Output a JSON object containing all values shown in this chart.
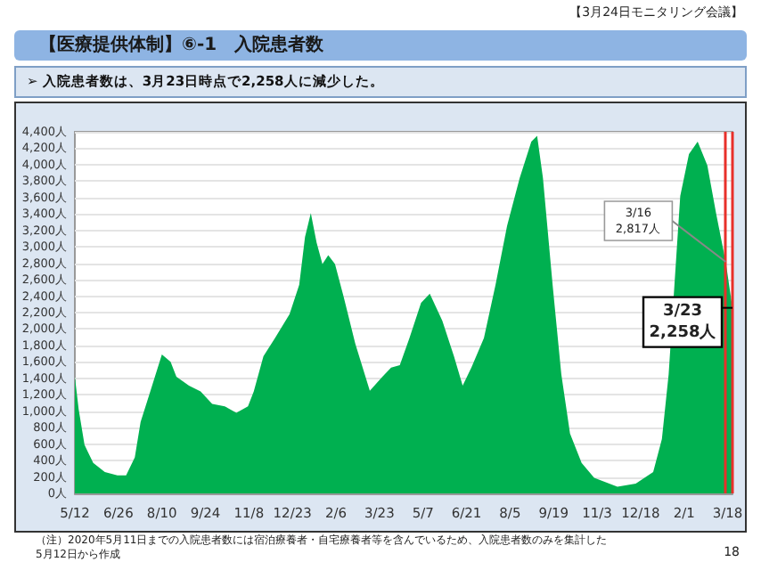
{
  "chart_data": {
    "type": "area",
    "title": "【医療提供体制】⑥-1　入院患者数",
    "subtitle": "➢  入院患者数は、3月23日時点で2,258人に減少した。",
    "annotations": [
      "【3月24日モニタリング会議】",
      "（注）2020年5月11日までの入院患者数には宿泊療養者・自宅療養者等を含んでいるため、入院患者数のみを集計した\n5月12日から作成",
      "18",
      {
        "text": "3/16\n2,817人",
        "x": "2022-03-16",
        "y": 2817
      },
      {
        "text": "3/23\n2,258人",
        "x": "2022-03-23",
        "y": 2258
      }
    ],
    "x": [
      "2020-05-12",
      "2020-05-16",
      "2020-05-22",
      "2020-05-31",
      "2020-06-12",
      "2020-06-25",
      "2020-07-04",
      "2020-07-13",
      "2020-07-19",
      "2020-07-29",
      "2020-08-10",
      "2020-08-19",
      "2020-08-25",
      "2020-09-07",
      "2020-09-19",
      "2020-10-01",
      "2020-10-14",
      "2020-10-26",
      "2020-11-07",
      "2020-11-13",
      "2020-11-23",
      "2020-12-05",
      "2020-12-20",
      "2020-12-30",
      "2021-01-05",
      "2021-01-11",
      "2021-01-17",
      "2021-01-23",
      "2021-01-29",
      "2021-02-05",
      "2021-02-14",
      "2021-02-26",
      "2021-03-13",
      "2021-03-26",
      "2021-04-04",
      "2021-04-13",
      "2021-04-23",
      "2021-05-05",
      "2021-05-14",
      "2021-05-27",
      "2021-06-08",
      "2021-06-17",
      "2021-06-26",
      "2021-07-09",
      "2021-07-21",
      "2021-08-02",
      "2021-08-15",
      "2021-08-27",
      "2021-09-02",
      "2021-09-08",
      "2021-09-18",
      "2021-09-27",
      "2021-10-06",
      "2021-10-18",
      "2021-10-31",
      "2021-11-24",
      "2021-12-13",
      "2021-12-31",
      "2022-01-09",
      "2022-01-16",
      "2022-01-22",
      "2022-01-28",
      "2022-02-06",
      "2022-02-15",
      "2022-02-25",
      "2022-03-06",
      "2022-03-16",
      "2022-03-23"
    ],
    "series": [
      {
        "color": "#00b050",
        "values": [
          1420,
          1020,
          590,
          370,
          260,
          220,
          220,
          440,
          870,
          1240,
          1690,
          1600,
          1420,
          1310,
          1240,
          1090,
          1060,
          980,
          1060,
          1240,
          1670,
          1890,
          2180,
          2540,
          3120,
          3410,
          3050,
          2790,
          2900,
          2790,
          2390,
          1820,
          1250,
          1420,
          1530,
          1560,
          1890,
          2320,
          2430,
          2100,
          1670,
          1310,
          1530,
          1890,
          2540,
          3260,
          3840,
          4280,
          4350,
          3840,
          2540,
          1450,
          730,
          370,
          190,
          80,
          120,
          260,
          660,
          1450,
          2540,
          3620,
          4130,
          4280,
          3990,
          3410,
          2817,
          2258
        ]
      }
    ],
    "xlim": [
      "2020-05-12",
      "2022-03-23"
    ],
    "xticks": [
      {
        "value": "2020-05-12",
        "label": "5/12"
      },
      {
        "value": "2020-06-26",
        "label": "6/26"
      },
      {
        "value": "2020-08-10",
        "label": "8/10"
      },
      {
        "value": "2020-09-24",
        "label": "9/24"
      },
      {
        "value": "2020-11-08",
        "label": "11/8"
      },
      {
        "value": "2020-12-23",
        "label": "12/23"
      },
      {
        "value": "2021-02-06",
        "label": "2/6"
      },
      {
        "value": "2021-03-23",
        "label": "3/23"
      },
      {
        "value": "2021-05-07",
        "label": "5/7"
      },
      {
        "value": "2021-06-21",
        "label": "6/21"
      },
      {
        "value": "2021-08-05",
        "label": "8/5"
      },
      {
        "value": "2021-09-19",
        "label": "9/19"
      },
      {
        "value": "2021-11-03",
        "label": "11/3"
      },
      {
        "value": "2021-12-18",
        "label": "12/18"
      },
      {
        "value": "2022-02-01",
        "label": "2/1"
      },
      {
        "value": "2022-03-18",
        "label": "3/18"
      }
    ],
    "ylim": [
      0,
      4400
    ],
    "yticks": [
      {
        "value": 0,
        "label": "0人"
      },
      {
        "value": 200,
        "label": "200人"
      },
      {
        "value": 400,
        "label": "400人"
      },
      {
        "value": 600,
        "label": "600人"
      },
      {
        "value": 800,
        "label": "800人"
      },
      {
        "value": 1000,
        "label": "1,000人"
      },
      {
        "value": 1200,
        "label": "1,200人"
      },
      {
        "value": 1400,
        "label": "1,400人"
      },
      {
        "value": 1600,
        "label": "1,600人"
      },
      {
        "value": 1800,
        "label": "1,800人"
      },
      {
        "value": 2000,
        "label": "2,000人"
      },
      {
        "value": 2200,
        "label": "2,200人"
      },
      {
        "value": 2400,
        "label": "2,400人"
      },
      {
        "value": 2600,
        "label": "2,600人"
      },
      {
        "value": 2800,
        "label": "2,800人"
      },
      {
        "value": 3000,
        "label": "3,000人"
      },
      {
        "value": 3200,
        "label": "3,200人"
      },
      {
        "value": 3400,
        "label": "3,400人"
      },
      {
        "value": 3600,
        "label": "3,600人"
      },
      {
        "value": 3800,
        "label": "3,800人"
      },
      {
        "value": 4000,
        "label": "4,000人"
      },
      {
        "value": 4200,
        "label": "4,200人"
      },
      {
        "value": 4400,
        "label": "4,400人"
      }
    ],
    "ref_lines": [
      {
        "axis": "x",
        "value": "2022-03-16",
        "color": "#e8302a"
      },
      {
        "axis": "x",
        "value": "2022-03-23",
        "color": "#e8302a"
      }
    ],
    "grid": "y"
  }
}
